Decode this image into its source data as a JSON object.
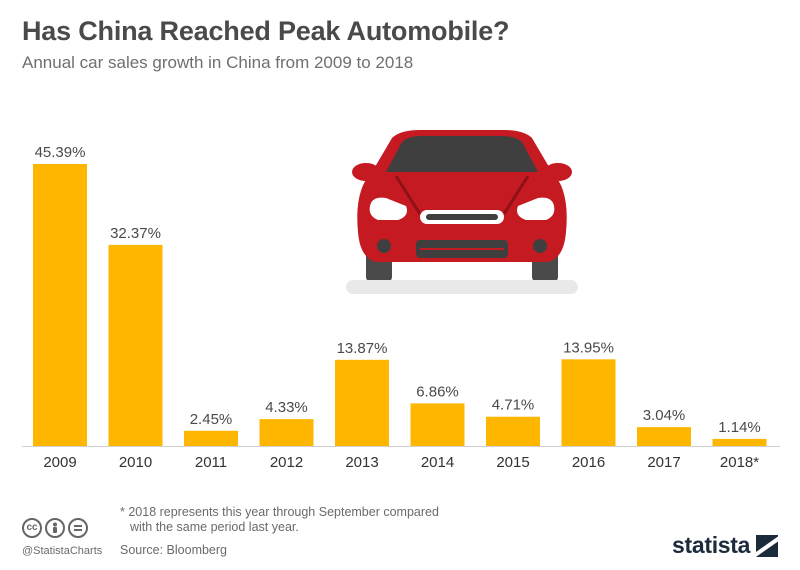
{
  "header": {
    "title": "Has China Reached Peak Automobile?",
    "subtitle": "Annual car sales growth in China from 2009 to 2018"
  },
  "footer": {
    "footnote_line1": "* 2018 represents this year through September compared",
    "footnote_line2": "with the same period last year.",
    "source": "Source: Bloomberg",
    "handle": "@StatistaCharts",
    "brand": "statista",
    "cc_icons": [
      "cc-icon",
      "person-icon",
      "equals-icon"
    ]
  },
  "colors": {
    "bar": "#ffb600",
    "car_body": "#c51a22",
    "car_dark": "#8e1116",
    "tire": "#4a4a4a"
  },
  "chart_data": {
    "type": "bar",
    "categories": [
      "2009",
      "2010",
      "2011",
      "2012",
      "2013",
      "2014",
      "2015",
      "2016",
      "2017",
      "2018*"
    ],
    "values": [
      45.39,
      32.37,
      2.45,
      4.33,
      13.87,
      6.86,
      4.71,
      13.95,
      3.04,
      1.14
    ],
    "value_labels": [
      "45.39%",
      "32.37%",
      "2.45%",
      "4.33%",
      "13.87%",
      "6.86%",
      "4.71%",
      "13.95%",
      "3.04%",
      "1.14%"
    ],
    "title": "Has China Reached Peak Automobile?",
    "subtitle": "Annual car sales growth in China from 2009 to 2018",
    "unit": "%",
    "ylim": [
      0,
      45.39
    ],
    "grid": false,
    "legend": "none"
  }
}
